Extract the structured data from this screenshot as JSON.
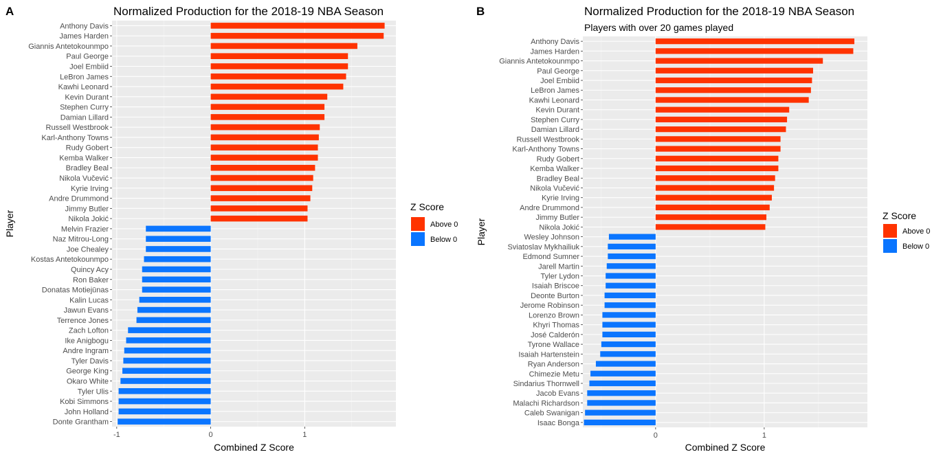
{
  "chart_data": [
    {
      "panel_tag": "A",
      "type": "bar",
      "orientation": "horizontal",
      "title": "Normalized Production for the 2018-19 NBA Season",
      "subtitle": "",
      "xlabel": "Combined Z Score",
      "ylabel": "Player",
      "xlim": [
        -1.05,
        1.97
      ],
      "xticks": [
        -1,
        0,
        1
      ],
      "grid": true,
      "legend": {
        "title": "Z Score",
        "position": "right",
        "items": [
          {
            "label": "Above 0",
            "color": "#FF3300"
          },
          {
            "label": "Below 0",
            "color": "#0A75FF"
          }
        ]
      },
      "categories": [
        "Anthony Davis",
        "James Harden",
        "Giannis Antetokounmpo",
        "Paul George",
        "Joel Embiid",
        "LeBron James",
        "Kawhi Leonard",
        "Kevin Durant",
        "Stephen Curry",
        "Damian Lillard",
        "Russell Westbrook",
        "Karl-Anthony Towns",
        "Rudy Gobert",
        "Kemba Walker",
        "Bradley Beal",
        "Nikola Vučević",
        "Kyrie Irving",
        "Andre Drummond",
        "Jimmy Butler",
        "Nikola Jokić",
        "Melvin Frazier",
        "Naz Mitrou-Long",
        "Joe Chealey",
        "Kostas Antetokounmpo",
        "Quincy Acy",
        "Ron Baker",
        "Donatas Motiejūnas",
        "Kalin Lucas",
        "Jawun Evans",
        "Terrence Jones",
        "Zach Lofton",
        "Ike Anigbogu",
        "Andre Ingram",
        "Tyler Davis",
        "George King",
        "Okaro White",
        "Tyler Ulis",
        "Kobi Simmons",
        "John Holland",
        "Donte Grantham"
      ],
      "values": [
        1.85,
        1.84,
        1.56,
        1.46,
        1.46,
        1.44,
        1.41,
        1.24,
        1.21,
        1.21,
        1.16,
        1.15,
        1.14,
        1.14,
        1.11,
        1.09,
        1.08,
        1.06,
        1.03,
        1.03,
        -0.69,
        -0.69,
        -0.69,
        -0.71,
        -0.73,
        -0.73,
        -0.73,
        -0.76,
        -0.78,
        -0.79,
        -0.88,
        -0.9,
        -0.92,
        -0.93,
        -0.94,
        -0.96,
        -0.98,
        -0.98,
        -0.98,
        -0.99
      ]
    },
    {
      "panel_tag": "B",
      "type": "bar",
      "orientation": "horizontal",
      "title": "Normalized Production for the 2018-19 NBA Season",
      "subtitle": "Players with over 20 games played",
      "xlabel": "Combined Z Score",
      "ylabel": "Player",
      "xlim": [
        -0.67,
        1.95
      ],
      "xticks": [
        0,
        1
      ],
      "grid": true,
      "legend": {
        "title": "Z Score",
        "position": "right",
        "items": [
          {
            "label": "Above 0",
            "color": "#FF3300"
          },
          {
            "label": "Below 0",
            "color": "#0A75FF"
          }
        ]
      },
      "categories": [
        "Anthony Davis",
        "James Harden",
        "Giannis Antetokounmpo",
        "Paul George",
        "Joel Embiid",
        "LeBron James",
        "Kawhi Leonard",
        "Kevin Durant",
        "Stephen Curry",
        "Damian Lillard",
        "Russell Westbrook",
        "Karl-Anthony Towns",
        "Rudy Gobert",
        "Kemba Walker",
        "Bradley Beal",
        "Nikola Vučević",
        "Kyrie Irving",
        "Andre Drummond",
        "Jimmy Butler",
        "Nikola Jokić",
        "Wesley Johnson",
        "Sviatoslav Mykhailiuk",
        "Edmond Sumner",
        "Jarell Martin",
        "Tyler Lydon",
        "Isaiah Briscoe",
        "Deonte Burton",
        "Jerome Robinson",
        "Lorenzo Brown",
        "Khyri Thomas",
        "José Calderón",
        "Tyrone Wallace",
        "Isaiah Hartenstein",
        "Ryan Anderson",
        "Chimezie Metu",
        "Sindarius Thornwell",
        "Jacob Evans",
        "Malachi Richardson",
        "Caleb Swanigan",
        "Isaac Bonga"
      ],
      "values": [
        1.83,
        1.82,
        1.54,
        1.45,
        1.44,
        1.43,
        1.41,
        1.23,
        1.21,
        1.2,
        1.15,
        1.15,
        1.13,
        1.13,
        1.1,
        1.09,
        1.07,
        1.05,
        1.02,
        1.01,
        -0.43,
        -0.44,
        -0.44,
        -0.45,
        -0.46,
        -0.46,
        -0.47,
        -0.47,
        -0.49,
        -0.49,
        -0.49,
        -0.5,
        -0.51,
        -0.55,
        -0.6,
        -0.61,
        -0.63,
        -0.63,
        -0.65,
        -0.66
      ]
    }
  ]
}
